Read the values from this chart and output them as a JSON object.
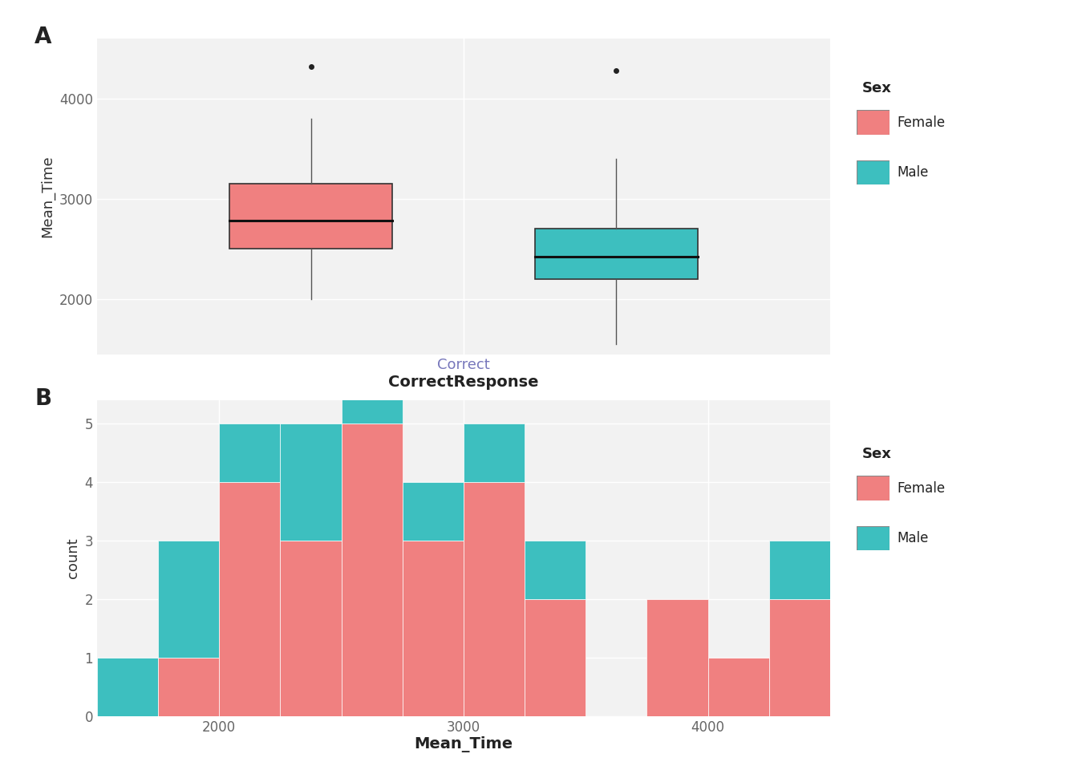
{
  "female_color": "#F08080",
  "male_color": "#3DBFBF",
  "bg_color": "#F2F2F2",
  "grid_color": "#FFFFFF",
  "boxplot": {
    "label": "Correct",
    "female": {
      "q1": 2500,
      "median": 2780,
      "q3": 3150,
      "whisker_low": 2000,
      "whisker_high": 3800,
      "outliers": [
        4320
      ]
    },
    "male": {
      "q1": 2200,
      "median": 2420,
      "q3": 2700,
      "whisker_low": 1550,
      "whisker_high": 3400,
      "outliers": [
        4280
      ]
    }
  },
  "boxplot_ylim": [
    1450,
    4600
  ],
  "boxplot_yticks": [
    2000,
    3000,
    4000
  ],
  "boxplot_ylabel": "Mean_Time",
  "boxplot_xlabel": "CorrectResponse",
  "boxplot_xlabel_tick": "Correct",
  "histogram": {
    "bin_edges": [
      1500,
      1750,
      2000,
      2250,
      2500,
      2750,
      3000,
      3250,
      3500,
      3750,
      4000,
      4250,
      4500
    ],
    "female_counts": [
      0,
      1,
      4,
      3,
      5,
      3,
      4,
      2,
      0,
      2,
      1,
      2
    ],
    "male_counts": [
      1,
      2,
      1,
      2,
      2,
      1,
      1,
      1,
      0,
      0,
      0,
      1
    ]
  },
  "hist_ylabel": "count",
  "hist_xlabel": "Mean_Time",
  "hist_ylim": [
    0,
    5.4
  ],
  "hist_yticks": [
    0,
    1,
    2,
    3,
    4,
    5
  ],
  "hist_xticks": [
    2000,
    3000,
    4000
  ],
  "panel_a_label": "A",
  "panel_b_label": "B",
  "legend_title": "Sex",
  "legend_female": "Female",
  "legend_male": "Male"
}
